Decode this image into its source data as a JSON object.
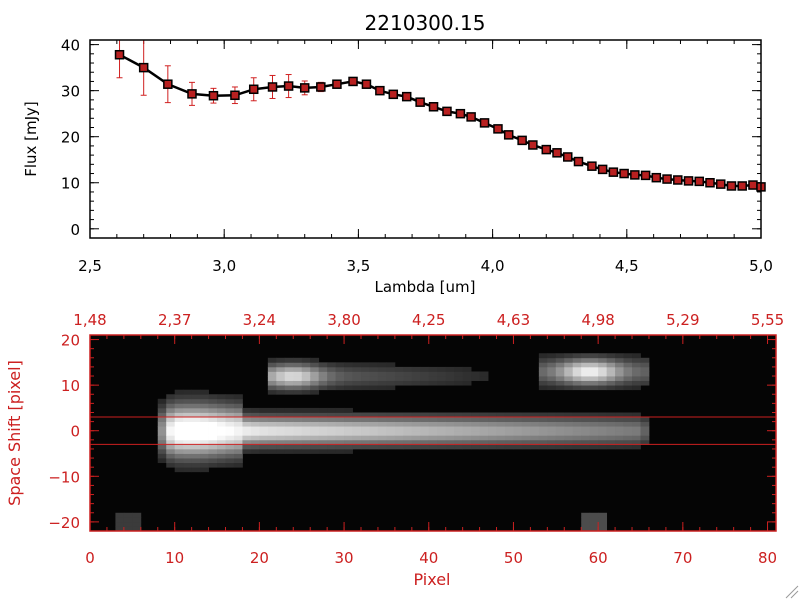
{
  "chart_data": [
    {
      "type": "line",
      "title": "2210300.15",
      "xlabel": "Lambda [um]",
      "ylabel": "Flux [mJy]",
      "xlim": [
        2.5,
        5.0
      ],
      "ylim": [
        -2,
        41
      ],
      "xticks": [
        2.5,
        3.0,
        3.5,
        4.0,
        4.5,
        5.0
      ],
      "xtick_labels": [
        "2,5",
        "3,0",
        "3,5",
        "4,0",
        "4,5",
        "5,0"
      ],
      "yticks": [
        0,
        10,
        20,
        30,
        40
      ],
      "ytick_labels": [
        "0",
        "10",
        "20",
        "30",
        "40"
      ],
      "line_color": "#000000",
      "marker_color": "#b82020",
      "errorbar_color": "#d02020",
      "series": [
        {
          "x": [
            2.61,
            2.7,
            2.79,
            2.88,
            2.96,
            3.04,
            3.11,
            3.18,
            3.24,
            3.3,
            3.36,
            3.42,
            3.48,
            3.53,
            3.58,
            3.63,
            3.68,
            3.73,
            3.78,
            3.83,
            3.88,
            3.92,
            3.97,
            4.02,
            4.06,
            4.11,
            4.15,
            4.2,
            4.24,
            4.28,
            4.32,
            4.37,
            4.41,
            4.45,
            4.49,
            4.53,
            4.57,
            4.61,
            4.65,
            4.69,
            4.73,
            4.77,
            4.81,
            4.85,
            4.89,
            4.93,
            4.97,
            5.0
          ],
          "y": [
            37.8,
            35.0,
            31.4,
            29.3,
            28.9,
            29.0,
            30.3,
            30.8,
            31.0,
            30.6,
            30.8,
            31.4,
            32.0,
            31.4,
            30.0,
            29.2,
            28.7,
            27.5,
            26.5,
            25.5,
            25.0,
            24.3,
            23.0,
            21.7,
            20.4,
            19.2,
            18.2,
            17.2,
            16.5,
            15.6,
            14.6,
            13.6,
            12.9,
            12.3,
            12.0,
            11.7,
            11.6,
            11.1,
            10.8,
            10.6,
            10.4,
            10.3,
            10.0,
            9.7,
            9.3,
            9.3,
            9.5,
            9.1
          ],
          "yerr": [
            5.0,
            6.0,
            4.0,
            2.5,
            1.6,
            1.8,
            2.5,
            2.5,
            2.5,
            1.5,
            1.0,
            0.8,
            0.8,
            0.7,
            0.5,
            0.5,
            0.5,
            0.5,
            0.5,
            0.5,
            0.5,
            0.5,
            0.5,
            0.5,
            0.5,
            0.5,
            0.5,
            0.5,
            0.5,
            0.5,
            0.5,
            0.5,
            0.5,
            0.5,
            0.5,
            0.5,
            0.5,
            0.5,
            0.5,
            0.5,
            0.5,
            0.5,
            0.5,
            0.5,
            0.5,
            0.5,
            0.5,
            0.5
          ]
        }
      ]
    },
    {
      "type": "heatmap",
      "xlabel": "Pixel",
      "ylabel": "Space Shift [pixel]",
      "xlim": [
        0,
        81
      ],
      "ylim": [
        -22,
        21
      ],
      "xticks": [
        0,
        10,
        20,
        30,
        40,
        50,
        60,
        70,
        80
      ],
      "xtick_labels": [
        "0",
        "10",
        "20",
        "30",
        "40",
        "50",
        "60",
        "70",
        "80"
      ],
      "yticks": [
        -20,
        -10,
        0,
        10,
        20
      ],
      "ytick_labels": [
        "−20",
        "−10",
        "0",
        "10",
        "20"
      ],
      "top_axis_labels": [
        "1,48",
        "2,37",
        "3,24",
        "3,80",
        "4,25",
        "4,63",
        "4,98",
        "5,29",
        "5,55"
      ],
      "extraction_lines_y": [
        3,
        -3
      ],
      "axis_color": "#cc2020",
      "colormap": "grayscale",
      "sources": [
        {
          "x0": 8,
          "x1": 66,
          "y": 0,
          "peak": 0.95
        },
        {
          "x0": 21,
          "x1": 52,
          "y": 12,
          "peak": 0.6
        },
        {
          "x0": 53,
          "x1": 66,
          "y": 13,
          "peak": 0.7
        }
      ]
    }
  ]
}
